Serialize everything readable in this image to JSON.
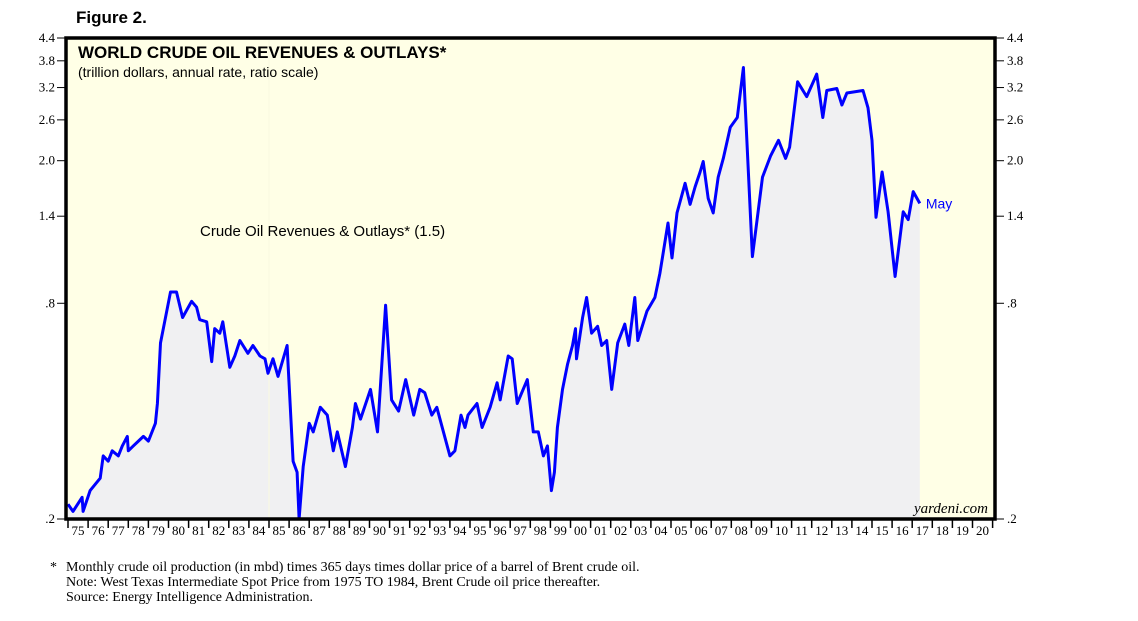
{
  "figure_label": "Figure 2.",
  "chart_data": {
    "type": "area",
    "title": "WORLD CRUDE OIL REVENUES & OUTLAYS*",
    "subtitle": "(trillion dollars, annual rate, ratio scale)",
    "xlabel": "",
    "ylabel": "",
    "yscale": "log",
    "ylim": [
      0.2,
      4.4
    ],
    "xlim": [
      1975,
      2021
    ],
    "grid": false,
    "y_ticks": [
      {
        "value": 4.4,
        "label": "4.4"
      },
      {
        "value": 3.8,
        "label": "3.8"
      },
      {
        "value": 3.2,
        "label": "3.2"
      },
      {
        "value": 2.6,
        "label": "2.6"
      },
      {
        "value": 2.0,
        "label": "2.0"
      },
      {
        "value": 1.4,
        "label": "1.4"
      },
      {
        "value": 0.8,
        "label": ".8"
      },
      {
        "value": 0.2,
        "label": ".2"
      }
    ],
    "x_tick_labels": [
      "75",
      "76",
      "77",
      "78",
      "79",
      "80",
      "81",
      "82",
      "83",
      "84",
      "85",
      "86",
      "87",
      "88",
      "89",
      "90",
      "91",
      "92",
      "93",
      "94",
      "95",
      "96",
      "97",
      "98",
      "99",
      "00",
      "01",
      "02",
      "03",
      "04",
      "05",
      "06",
      "07",
      "08",
      "09",
      "10",
      "11",
      "12",
      "13",
      "14",
      "15",
      "16",
      "17",
      "18",
      "19",
      "20"
    ],
    "x_tick_start_year": 1975,
    "annotation": "Crude Oil Revenues & Outlays* (1.5)",
    "end_label": "May",
    "watermark": "yardeni.com",
    "colors": {
      "line": "#0000FF",
      "fill": "#F0F0F2",
      "plot_background": "#FFFFE6",
      "frame": "#000000"
    },
    "series": [
      {
        "name": "Crude Oil Revenues & Outlays",
        "latest_value": 1.5,
        "x": [
          1975.0,
          1975.25,
          1975.7,
          1975.75,
          1976.1,
          1976.6,
          1976.75,
          1977.0,
          1977.2,
          1977.5,
          1977.7,
          1977.95,
          1978.0,
          1978.25,
          1978.5,
          1978.75,
          1979.0,
          1979.35,
          1979.45,
          1979.6,
          1979.85,
          1980.1,
          1980.4,
          1980.7,
          1981.15,
          1981.4,
          1981.55,
          1981.9,
          1982.15,
          1982.3,
          1982.55,
          1982.7,
          1983.05,
          1983.3,
          1983.55,
          1983.95,
          1984.2,
          1984.55,
          1984.8,
          1984.95,
          1985.2,
          1985.45,
          1985.9,
          1986.2,
          1986.4,
          1986.5,
          1986.7,
          1987.0,
          1987.2,
          1987.55,
          1987.9,
          1988.2,
          1988.4,
          1988.8,
          1989.15,
          1989.3,
          1989.55,
          1990.05,
          1990.4,
          1990.8,
          1991.1,
          1991.45,
          1991.8,
          1992.2,
          1992.5,
          1992.75,
          1993.1,
          1993.35,
          1994.0,
          1994.25,
          1994.55,
          1994.75,
          1994.9,
          1995.35,
          1995.6,
          1996.0,
          1996.35,
          1996.5,
          1996.9,
          1997.1,
          1997.35,
          1997.85,
          1998.15,
          1998.4,
          1998.65,
          1998.85,
          1999.05,
          1999.2,
          1999.35,
          1999.6,
          1999.85,
          2000.1,
          2000.25,
          2000.3,
          2000.6,
          2000.8,
          2001.05,
          2001.35,
          2001.55,
          2001.8,
          2002.05,
          2002.35,
          2002.7,
          2002.9,
          2003.2,
          2003.35,
          2003.8,
          2004.2,
          2004.45,
          2004.85,
          2005.05,
          2005.3,
          2005.7,
          2005.95,
          2006.2,
          2006.45,
          2006.6,
          2006.85,
          2007.1,
          2007.35,
          2007.6,
          2007.95,
          2008.3,
          2008.6,
          2009.05,
          2009.55,
          2009.95,
          2010.35,
          2010.7,
          2010.9,
          2011.3,
          2011.75,
          2012.25,
          2012.55,
          2012.75,
          2013.25,
          2013.5,
          2013.75,
          2014.55,
          2014.8,
          2015.0,
          2015.2,
          2015.5,
          2015.8,
          2016.15,
          2016.55,
          2016.8,
          2017.05,
          2017.38
        ],
        "values": [
          0.22,
          0.21,
          0.23,
          0.21,
          0.24,
          0.26,
          0.3,
          0.29,
          0.31,
          0.3,
          0.32,
          0.34,
          0.31,
          0.32,
          0.33,
          0.34,
          0.33,
          0.37,
          0.42,
          0.62,
          0.73,
          0.86,
          0.86,
          0.73,
          0.81,
          0.78,
          0.72,
          0.71,
          0.55,
          0.68,
          0.66,
          0.71,
          0.53,
          0.57,
          0.63,
          0.58,
          0.61,
          0.57,
          0.56,
          0.51,
          0.56,
          0.5,
          0.61,
          0.29,
          0.27,
          0.2,
          0.28,
          0.37,
          0.35,
          0.41,
          0.39,
          0.31,
          0.35,
          0.28,
          0.36,
          0.42,
          0.38,
          0.46,
          0.35,
          0.79,
          0.43,
          0.4,
          0.49,
          0.39,
          0.46,
          0.45,
          0.39,
          0.41,
          0.3,
          0.31,
          0.39,
          0.36,
          0.39,
          0.42,
          0.36,
          0.41,
          0.48,
          0.43,
          0.57,
          0.56,
          0.42,
          0.49,
          0.35,
          0.35,
          0.3,
          0.32,
          0.24,
          0.27,
          0.36,
          0.46,
          0.54,
          0.61,
          0.68,
          0.56,
          0.73,
          0.83,
          0.66,
          0.69,
          0.61,
          0.63,
          0.46,
          0.62,
          0.7,
          0.61,
          0.83,
          0.63,
          0.76,
          0.83,
          0.97,
          1.34,
          1.07,
          1.43,
          1.73,
          1.51,
          1.69,
          1.86,
          1.99,
          1.57,
          1.43,
          1.8,
          2.03,
          2.48,
          2.64,
          3.64,
          1.08,
          1.8,
          2.06,
          2.28,
          2.03,
          2.18,
          3.32,
          3.02,
          3.49,
          2.64,
          3.14,
          3.18,
          2.86,
          3.09,
          3.14,
          2.81,
          2.28,
          1.39,
          1.86,
          1.44,
          0.95,
          1.44,
          1.37,
          1.64,
          1.52
        ]
      }
    ]
  },
  "footnotes": {
    "marker": "*",
    "line1": "Monthly crude oil production (in mbd) times 365 days times dollar price of a barrel of Brent crude oil.",
    "line2": "Note: West Texas Intermediate Spot Price from 1975 TO 1984, Brent Crude oil price thereafter.",
    "line3": "Source: Energy Intelligence Administration."
  }
}
